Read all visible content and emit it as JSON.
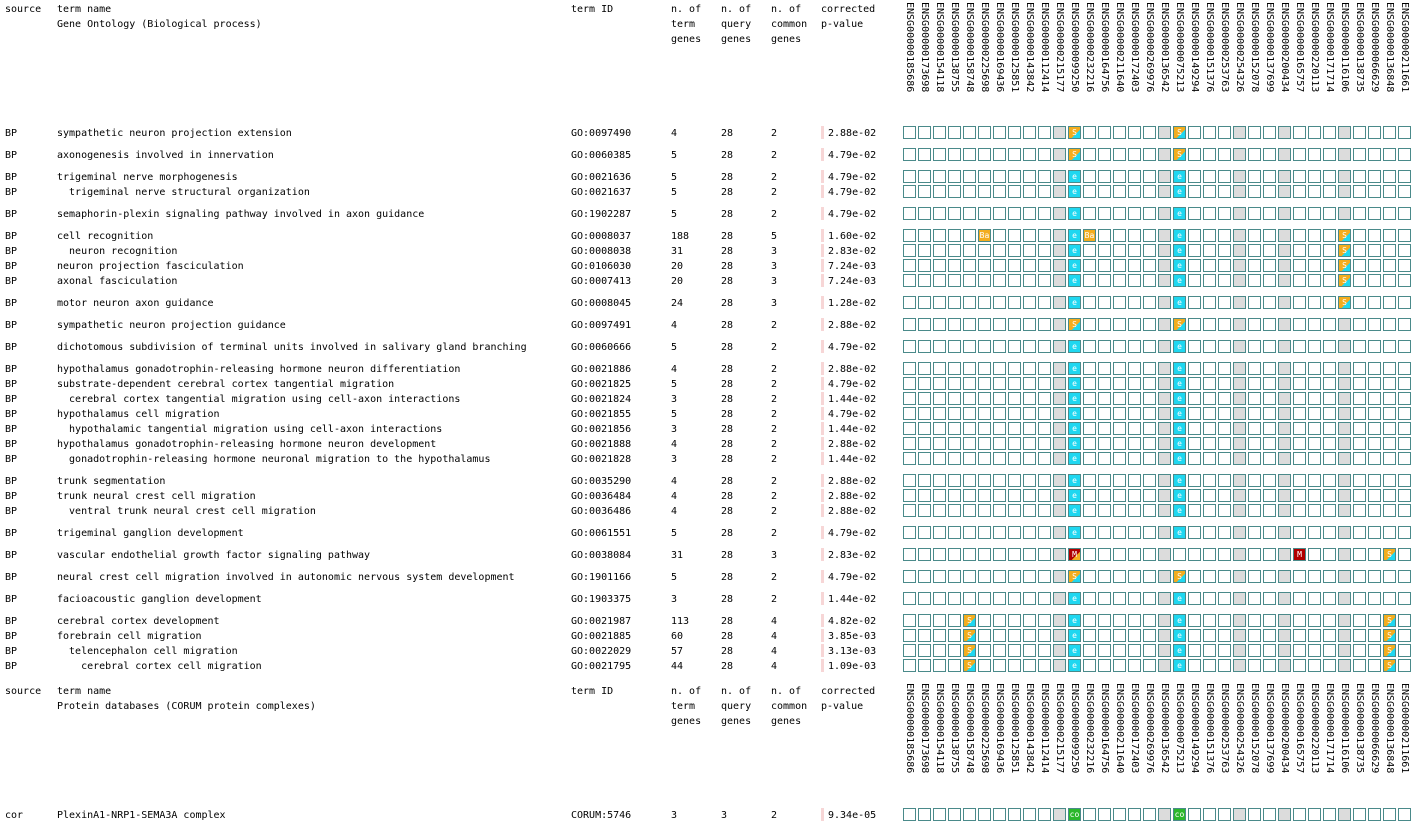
{
  "colors": {
    "grid_border": "#4a8a8a",
    "shade": "#dcdcdc",
    "evidence": {
      "S": "#f3ad1f",
      "e": "#1fd7f0",
      "Ba": "#f3ad1f",
      "M": "#b00000",
      "co": "#2bb82b"
    },
    "pvalue_bar": "#f7d6d6"
  },
  "sections": [
    {
      "header": {
        "source": "source",
        "term_name": "term name",
        "subtitle": "Gene Ontology (Biological process)",
        "term_id": "term ID",
        "n_term": "n. of\nterm\ngenes",
        "n_query": "n. of\nquery\ngenes",
        "n_common": "n. of\ncommon\ngenes",
        "pvalue": "corrected\np-value"
      },
      "genes": [
        "ENSG00000185686",
        "ENSG00000173698",
        "ENSG00000154118",
        "ENSG00000138755",
        "ENSG00000158748",
        "ENSG00000225698",
        "ENSG00000169436",
        "ENSG00000125851",
        "ENSG00000143842",
        "ENSG00000112414",
        "ENSG00000215177",
        "ENSG00000099250",
        "ENSG00000232216",
        "ENSG00000164756",
        "ENSG00000211640",
        "ENSG00000172403",
        "ENSG00000269976",
        "ENSG00000136542",
        "ENSG00000075213",
        "ENSG00000149294",
        "ENSG00000151376",
        "ENSG00000253763",
        "ENSG00000254326",
        "ENSG00000152078",
        "ENSG00000137699",
        "ENSG00000200434",
        "ENSG00000165757",
        "ENSG00000220113",
        "ENSG00000171714",
        "ENSG00000116106",
        "ENSG00000138735",
        "ENSG00000066629",
        "ENSG00000136848",
        "ENSG00000211661"
      ],
      "rows": [
        {
          "source": "BP",
          "name": "sympathetic neuron projection extension",
          "id": "GO:0097490",
          "nt": "4",
          "nq": "28",
          "nc": "2",
          "p": "2.88e-02",
          "marks": [
            {
              "col": 11,
              "code": "S",
              "sub": "e"
            },
            {
              "col": 18,
              "code": "S",
              "sub": "e"
            }
          ]
        },
        {
          "source": "BP",
          "name": "axonogenesis involved in innervation",
          "id": "GO:0060385",
          "nt": "5",
          "nq": "28",
          "nc": "2",
          "p": "4.79e-02",
          "marks": [
            {
              "col": 11,
              "code": "S",
              "sub": "e"
            },
            {
              "col": 18,
              "code": "S",
              "sub": "e"
            }
          ]
        },
        {
          "source": "BP",
          "name": "trigeminal nerve morphogenesis",
          "id": "GO:0021636",
          "nt": "5",
          "nq": "28",
          "nc": "2",
          "p": "4.79e-02",
          "marks": [
            {
              "col": 11,
              "code": "e"
            },
            {
              "col": 18,
              "code": "e"
            }
          ]
        },
        {
          "source": "BP",
          "name": "  trigeminal nerve structural organization",
          "id": "GO:0021637",
          "nt": "5",
          "nq": "28",
          "nc": "2",
          "p": "4.79e-02",
          "marks": [
            {
              "col": 11,
              "code": "e"
            },
            {
              "col": 18,
              "code": "e"
            }
          ]
        },
        {
          "source": "BP",
          "name": "semaphorin-plexin signaling pathway involved in axon guidance",
          "id": "GO:1902287",
          "nt": "5",
          "nq": "28",
          "nc": "2",
          "p": "4.79e-02",
          "marks": [
            {
              "col": 11,
              "code": "e"
            },
            {
              "col": 18,
              "code": "e"
            }
          ]
        },
        {
          "source": "BP",
          "name": "cell recognition",
          "id": "GO:0008037",
          "nt": "188",
          "nq": "28",
          "nc": "5",
          "p": "1.60e-02",
          "marks": [
            {
              "col": 5,
              "code": "Ba"
            },
            {
              "col": 11,
              "code": "e"
            },
            {
              "col": 12,
              "code": "Ba"
            },
            {
              "col": 18,
              "code": "e"
            },
            {
              "col": 29,
              "code": "S",
              "sub": "e"
            }
          ]
        },
        {
          "source": "BP",
          "name": "  neuron recognition",
          "id": "GO:0008038",
          "nt": "31",
          "nq": "28",
          "nc": "3",
          "p": "2.83e-02",
          "marks": [
            {
              "col": 11,
              "code": "e"
            },
            {
              "col": 18,
              "code": "e"
            },
            {
              "col": 29,
              "code": "S",
              "sub": "e"
            }
          ]
        },
        {
          "source": "BP",
          "name": "neuron projection fasciculation",
          "id": "GO:0106030",
          "nt": "20",
          "nq": "28",
          "nc": "3",
          "p": "7.24e-03",
          "marks": [
            {
              "col": 11,
              "code": "e"
            },
            {
              "col": 18,
              "code": "e"
            },
            {
              "col": 29,
              "code": "S",
              "sub": "e"
            }
          ]
        },
        {
          "source": "BP",
          "name": "axonal fasciculation",
          "id": "GO:0007413",
          "nt": "20",
          "nq": "28",
          "nc": "3",
          "p": "7.24e-03",
          "marks": [
            {
              "col": 11,
              "code": "e"
            },
            {
              "col": 18,
              "code": "e"
            },
            {
              "col": 29,
              "code": "S",
              "sub": "e"
            }
          ]
        },
        {
          "source": "BP",
          "name": "motor neuron axon guidance",
          "id": "GO:0008045",
          "nt": "24",
          "nq": "28",
          "nc": "3",
          "p": "1.28e-02",
          "marks": [
            {
              "col": 11,
              "code": "e"
            },
            {
              "col": 18,
              "code": "e"
            },
            {
              "col": 29,
              "code": "S",
              "sub": "e"
            }
          ]
        },
        {
          "source": "BP",
          "name": "sympathetic neuron projection guidance",
          "id": "GO:0097491",
          "nt": "4",
          "nq": "28",
          "nc": "2",
          "p": "2.88e-02",
          "marks": [
            {
              "col": 11,
              "code": "S",
              "sub": "e"
            },
            {
              "col": 18,
              "code": "S",
              "sub": "e"
            }
          ]
        },
        {
          "source": "BP",
          "name": "dichotomous subdivision of terminal units involved in salivary gland branching",
          "id": "GO:0060666",
          "nt": "5",
          "nq": "28",
          "nc": "2",
          "p": "4.79e-02",
          "marks": [
            {
              "col": 11,
              "code": "e"
            },
            {
              "col": 18,
              "code": "e"
            }
          ]
        },
        {
          "source": "BP",
          "name": "hypothalamus gonadotrophin-releasing hormone neuron differentiation",
          "id": "GO:0021886",
          "nt": "4",
          "nq": "28",
          "nc": "2",
          "p": "2.88e-02",
          "marks": [
            {
              "col": 11,
              "code": "e"
            },
            {
              "col": 18,
              "code": "e"
            }
          ]
        },
        {
          "source": "BP",
          "name": "substrate-dependent cerebral cortex tangential migration",
          "id": "GO:0021825",
          "nt": "5",
          "nq": "28",
          "nc": "2",
          "p": "4.79e-02",
          "marks": [
            {
              "col": 11,
              "code": "e"
            },
            {
              "col": 18,
              "code": "e"
            }
          ]
        },
        {
          "source": "BP",
          "name": "  cerebral cortex tangential migration using cell-axon interactions",
          "id": "GO:0021824",
          "nt": "3",
          "nq": "28",
          "nc": "2",
          "p": "1.44e-02",
          "marks": [
            {
              "col": 11,
              "code": "e"
            },
            {
              "col": 18,
              "code": "e"
            }
          ]
        },
        {
          "source": "BP",
          "name": "hypothalamus cell migration",
          "id": "GO:0021855",
          "nt": "5",
          "nq": "28",
          "nc": "2",
          "p": "4.79e-02",
          "marks": [
            {
              "col": 11,
              "code": "e"
            },
            {
              "col": 18,
              "code": "e"
            }
          ]
        },
        {
          "source": "BP",
          "name": "  hypothalamic tangential migration using cell-axon interactions",
          "id": "GO:0021856",
          "nt": "3",
          "nq": "28",
          "nc": "2",
          "p": "1.44e-02",
          "marks": [
            {
              "col": 11,
              "code": "e"
            },
            {
              "col": 18,
              "code": "e"
            }
          ]
        },
        {
          "source": "BP",
          "name": "hypothalamus gonadotrophin-releasing hormone neuron development",
          "id": "GO:0021888",
          "nt": "4",
          "nq": "28",
          "nc": "2",
          "p": "2.88e-02",
          "marks": [
            {
              "col": 11,
              "code": "e"
            },
            {
              "col": 18,
              "code": "e"
            }
          ]
        },
        {
          "source": "BP",
          "name": "  gonadotrophin-releasing hormone neuronal migration to the hypothalamus",
          "id": "GO:0021828",
          "nt": "3",
          "nq": "28",
          "nc": "2",
          "p": "1.44e-02",
          "marks": [
            {
              "col": 11,
              "code": "e"
            },
            {
              "col": 18,
              "code": "e"
            }
          ]
        },
        {
          "source": "BP",
          "name": "trunk segmentation",
          "id": "GO:0035290",
          "nt": "4",
          "nq": "28",
          "nc": "2",
          "p": "2.88e-02",
          "marks": [
            {
              "col": 11,
              "code": "e"
            },
            {
              "col": 18,
              "code": "e"
            }
          ]
        },
        {
          "source": "BP",
          "name": "trunk neural crest cell migration",
          "id": "GO:0036484",
          "nt": "4",
          "nq": "28",
          "nc": "2",
          "p": "2.88e-02",
          "marks": [
            {
              "col": 11,
              "code": "e"
            },
            {
              "col": 18,
              "code": "e"
            }
          ]
        },
        {
          "source": "BP",
          "name": "  ventral trunk neural crest cell migration",
          "id": "GO:0036486",
          "nt": "4",
          "nq": "28",
          "nc": "2",
          "p": "2.88e-02",
          "marks": [
            {
              "col": 11,
              "code": "e"
            },
            {
              "col": 18,
              "code": "e"
            }
          ]
        },
        {
          "source": "BP",
          "name": "trigeminal ganglion development",
          "id": "GO:0061551",
          "nt": "5",
          "nq": "28",
          "nc": "2",
          "p": "4.79e-02",
          "marks": [
            {
              "col": 11,
              "code": "e"
            },
            {
              "col": 18,
              "code": "e"
            }
          ]
        },
        {
          "source": "BP",
          "name": "vascular endothelial growth factor signaling pathway",
          "id": "GO:0038084",
          "nt": "31",
          "nq": "28",
          "nc": "3",
          "p": "2.83e-02",
          "marks": [
            {
              "col": 11,
              "code": "M",
              "sub": "S"
            },
            {
              "col": 26,
              "code": "M"
            },
            {
              "col": 32,
              "code": "S",
              "sub": "e"
            }
          ]
        },
        {
          "source": "BP",
          "name": "neural crest cell migration involved in autonomic nervous system development",
          "id": "GO:1901166",
          "nt": "5",
          "nq": "28",
          "nc": "2",
          "p": "4.79e-02",
          "marks": [
            {
              "col": 11,
              "code": "S",
              "sub": "e"
            },
            {
              "col": 18,
              "code": "S",
              "sub": "e"
            }
          ]
        },
        {
          "source": "BP",
          "name": "facioacoustic ganglion development",
          "id": "GO:1903375",
          "nt": "3",
          "nq": "28",
          "nc": "2",
          "p": "1.44e-02",
          "marks": [
            {
              "col": 11,
              "code": "e"
            },
            {
              "col": 18,
              "code": "e"
            }
          ]
        },
        {
          "source": "BP",
          "name": "cerebral cortex development",
          "id": "GO:0021987",
          "nt": "113",
          "nq": "28",
          "nc": "4",
          "p": "4.82e-02",
          "marks": [
            {
              "col": 4,
              "code": "S",
              "sub": "e"
            },
            {
              "col": 11,
              "code": "e"
            },
            {
              "col": 18,
              "code": "e"
            },
            {
              "col": 32,
              "code": "S",
              "sub": "e"
            }
          ]
        },
        {
          "source": "BP",
          "name": "forebrain cell migration",
          "id": "GO:0021885",
          "nt": "60",
          "nq": "28",
          "nc": "4",
          "p": "3.85e-03",
          "marks": [
            {
              "col": 4,
              "code": "S",
              "sub": "e"
            },
            {
              "col": 11,
              "code": "e"
            },
            {
              "col": 18,
              "code": "e"
            },
            {
              "col": 32,
              "code": "S",
              "sub": "e"
            }
          ]
        },
        {
          "source": "BP",
          "name": "  telencephalon cell migration",
          "id": "GO:0022029",
          "nt": "57",
          "nq": "28",
          "nc": "4",
          "p": "3.13e-03",
          "marks": [
            {
              "col": 4,
              "code": "S",
              "sub": "e"
            },
            {
              "col": 11,
              "code": "e"
            },
            {
              "col": 18,
              "code": "e"
            },
            {
              "col": 32,
              "code": "S",
              "sub": "e"
            }
          ]
        },
        {
          "source": "BP",
          "name": "    cerebral cortex cell migration",
          "id": "GO:0021795",
          "nt": "44",
          "nq": "28",
          "nc": "4",
          "p": "1.09e-03",
          "marks": [
            {
              "col": 4,
              "code": "S",
              "sub": "e"
            },
            {
              "col": 11,
              "code": "e"
            },
            {
              "col": 18,
              "code": "e"
            },
            {
              "col": 32,
              "code": "S",
              "sub": "e"
            }
          ]
        }
      ]
    },
    {
      "header": {
        "source": "source",
        "term_name": "term name",
        "subtitle": "Protein databases (CORUM protein complexes)",
        "term_id": "term ID",
        "n_term": "n. of\nterm\ngenes",
        "n_query": "n. of\nquery\ngenes",
        "n_common": "n. of\ncommon\ngenes",
        "pvalue": "corrected\np-value"
      },
      "genes": [
        "ENSG00000185686",
        "ENSG00000173698",
        "ENSG00000154118",
        "ENSG00000138755",
        "ENSG00000158748",
        "ENSG00000225698",
        "ENSG00000169436",
        "ENSG00000125851",
        "ENSG00000143842",
        "ENSG00000112414",
        "ENSG00000215177",
        "ENSG00000099250",
        "ENSG00000232216",
        "ENSG00000164756",
        "ENSG00000211640",
        "ENSG00000172403",
        "ENSG00000269976",
        "ENSG00000136542",
        "ENSG00000075213",
        "ENSG00000149294",
        "ENSG00000151376",
        "ENSG00000253763",
        "ENSG00000254326",
        "ENSG00000152078",
        "ENSG00000137699",
        "ENSG00000200434",
        "ENSG00000165757",
        "ENSG00000220113",
        "ENSG00000171714",
        "ENSG00000116106",
        "ENSG00000138735",
        "ENSG00000066629",
        "ENSG00000136848",
        "ENSG00000211661"
      ],
      "rows": [
        {
          "source": "cor",
          "name": "PlexinA1-NRP1-SEMA3A complex",
          "id": "CORUM:5746",
          "nt": "3",
          "nq": "3",
          "nc": "2",
          "p": "9.34e-05",
          "marks": [
            {
              "col": 11,
              "code": "co"
            },
            {
              "col": 18,
              "code": "co"
            }
          ]
        }
      ]
    }
  ]
}
